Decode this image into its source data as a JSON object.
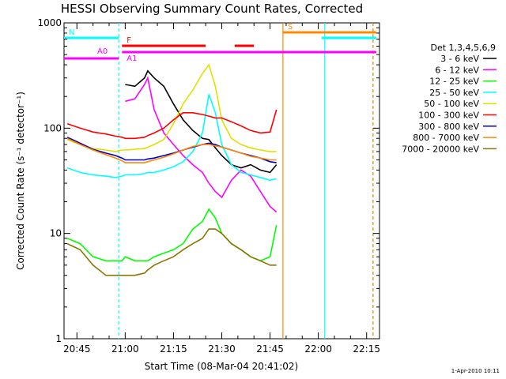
{
  "chart_data": {
    "type": "line",
    "title": "HESSI Observing Summary Count Rates, Corrected",
    "xlabel": "Start Time (08-Mar-04 20:41:02)",
    "ylabel": "Corrected Count Rate (s⁻¹ detector⁻¹)",
    "yscale": "log",
    "ylim": [
      1,
      1000
    ],
    "xlim": [
      "20:41",
      "22:19"
    ],
    "y_ticks": [
      {
        "value": 1,
        "label": "1"
      },
      {
        "value": 10,
        "label": "10"
      },
      {
        "value": 100,
        "label": "100"
      },
      {
        "value": 1000,
        "label": "1000"
      }
    ],
    "x_ticks": [
      "20:45",
      "21:00",
      "21:15",
      "21:30",
      "21:45",
      "22:00",
      "22:15"
    ],
    "legend_title": "Det 1,3,4,5,6,9",
    "legend_position": "right",
    "stamp": "1-Apr-2010 10:11",
    "x": [
      "20:42",
      "20:46",
      "20:50",
      "20:54",
      "20:57",
      "20:59",
      "21:00",
      "21:03",
      "21:06",
      "21:07",
      "21:09",
      "21:12",
      "21:15",
      "21:18",
      "21:21",
      "21:24",
      "21:26",
      "21:28",
      "21:30",
      "21:33",
      "21:36",
      "21:39",
      "21:42",
      "21:45",
      "21:47"
    ],
    "series": [
      {
        "name": "3 - 6 keV",
        "color": "#000000",
        "values": [
          null,
          null,
          null,
          null,
          null,
          null,
          260,
          250,
          300,
          350,
          300,
          250,
          170,
          120,
          95,
          80,
          78,
          65,
          55,
          45,
          42,
          45,
          40,
          38,
          45
        ]
      },
      {
        "name": "6 - 12 keV",
        "color": "#ff00ff",
        "values": [
          null,
          null,
          null,
          null,
          null,
          null,
          180,
          190,
          260,
          300,
          150,
          90,
          70,
          55,
          45,
          38,
          30,
          25,
          22,
          32,
          40,
          35,
          25,
          18,
          16
        ]
      },
      {
        "name": "12 - 25 keV",
        "color": "#00ff00",
        "values": [
          9,
          8,
          6,
          5.5,
          5.5,
          5.5,
          6,
          5.5,
          5.5,
          5.5,
          6,
          6.5,
          7,
          8,
          11,
          13,
          17,
          14,
          10,
          8,
          7,
          6,
          5.5,
          6,
          12
        ]
      },
      {
        "name": "25 - 50 keV",
        "color": "#00ffff",
        "values": [
          42,
          38,
          36,
          35,
          34,
          35,
          36,
          36,
          37,
          38,
          38,
          40,
          43,
          48,
          60,
          90,
          210,
          140,
          70,
          45,
          38,
          36,
          34,
          32,
          33
        ]
      },
      {
        "name": "50 - 100 keV",
        "color": "#e0e000",
        "values": [
          78,
          70,
          64,
          62,
          60,
          62,
          62,
          63,
          64,
          66,
          70,
          78,
          110,
          170,
          230,
          330,
          400,
          250,
          120,
          80,
          70,
          65,
          62,
          60,
          60
        ]
      },
      {
        "name": "100 - 300 keV",
        "color": "#ff0000",
        "values": [
          110,
          100,
          92,
          88,
          84,
          82,
          80,
          80,
          82,
          85,
          90,
          100,
          120,
          140,
          140,
          135,
          130,
          125,
          125,
          115,
          105,
          95,
          90,
          92,
          150
        ]
      },
      {
        "name": "300 - 800 keV",
        "color": "#0000cc",
        "values": [
          82,
          72,
          63,
          58,
          55,
          52,
          50,
          50,
          50,
          51,
          52,
          55,
          58,
          62,
          66,
          70,
          72,
          70,
          66,
          62,
          58,
          55,
          52,
          48,
          47
        ]
      },
      {
        "name": "800 - 7000 keV",
        "color": "#ff8800",
        "values": [
          80,
          70,
          62,
          56,
          52,
          49,
          47,
          47,
          47,
          48,
          50,
          53,
          57,
          62,
          67,
          70,
          70,
          68,
          66,
          62,
          58,
          54,
          52,
          50,
          50
        ]
      },
      {
        "name": "7000 - 20000 keV",
        "color": "#8b7500",
        "values": [
          8,
          7,
          5,
          4,
          4,
          4,
          4,
          4,
          4.2,
          4.5,
          5,
          5.5,
          6,
          7,
          8,
          9,
          11,
          11,
          10,
          8,
          7,
          6,
          5.5,
          5,
          5
        ]
      }
    ],
    "flag_bars": [
      {
        "label": "N",
        "color": "#00ffff",
        "segments": [
          [
            "20:41",
            "20:58"
          ],
          [
            "22:01",
            "22:18"
          ]
        ]
      },
      {
        "label": "S",
        "color": "#ff8800",
        "segments": [
          [
            "21:49",
            "22:18"
          ]
        ]
      },
      {
        "label": "F",
        "color": "#ff0000",
        "segments": [
          [
            "20:59",
            "21:25"
          ],
          [
            "21:34",
            "21:40"
          ]
        ]
      },
      {
        "label": "A0",
        "color": "#ff00ff",
        "segments": [
          [
            "20:41",
            "20:58"
          ]
        ]
      },
      {
        "label": "A1",
        "color": "#ff00ff",
        "segments": [
          [
            "20:59",
            "22:18"
          ]
        ]
      }
    ],
    "vertical_lines": [
      {
        "time": "20:58",
        "color": "#00ffff",
        "dashed": true
      },
      {
        "time": "21:49",
        "color": "#ff8800",
        "dashed": false
      },
      {
        "time": "22:02",
        "color": "#00ffff",
        "dashed": false
      },
      {
        "time": "22:17",
        "color": "#00ffff",
        "dashed": true
      },
      {
        "time": "22:17",
        "color": "#ff8800",
        "dashed": true
      }
    ]
  }
}
